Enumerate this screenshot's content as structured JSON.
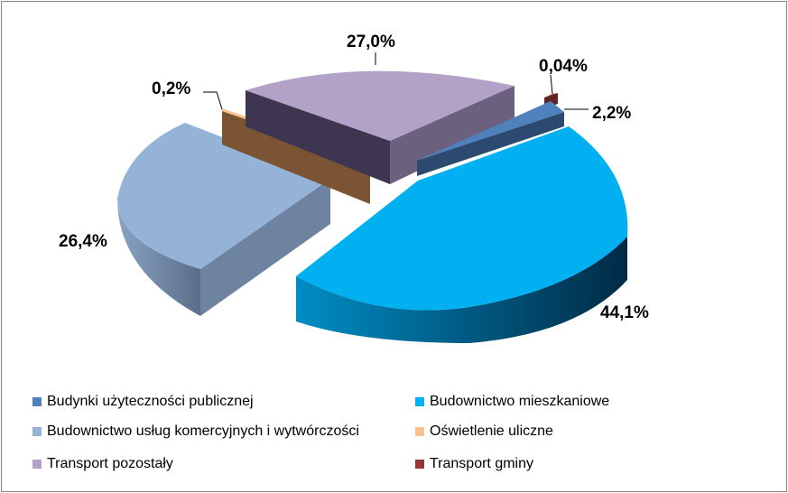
{
  "chart_data": {
    "type": "pie",
    "title": "",
    "legend_position": "bottom",
    "slices": [
      {
        "name": "Budynki użyteczności publicznej",
        "value": 2.2,
        "label": "2,2%",
        "color": "#4F81BD"
      },
      {
        "name": "Budownictwo mieszkaniowe",
        "value": 44.1,
        "label": "44,1%",
        "color": "#00B0F0"
      },
      {
        "name": "Budownictwo usług komercyjnych i wytwórczości",
        "value": 26.4,
        "label": "26,4%",
        "color": "#95B3D7"
      },
      {
        "name": "Oświetlenie uliczne",
        "value": 0.2,
        "label": "0,2%",
        "color": "#FAC090"
      },
      {
        "name": "Transport pozostały",
        "value": 27.0,
        "label": "27,0%",
        "color": "#B3A2C7"
      },
      {
        "name": "Transport gminy",
        "value": 0.04,
        "label": "0,04%",
        "color": "#953735"
      }
    ]
  }
}
